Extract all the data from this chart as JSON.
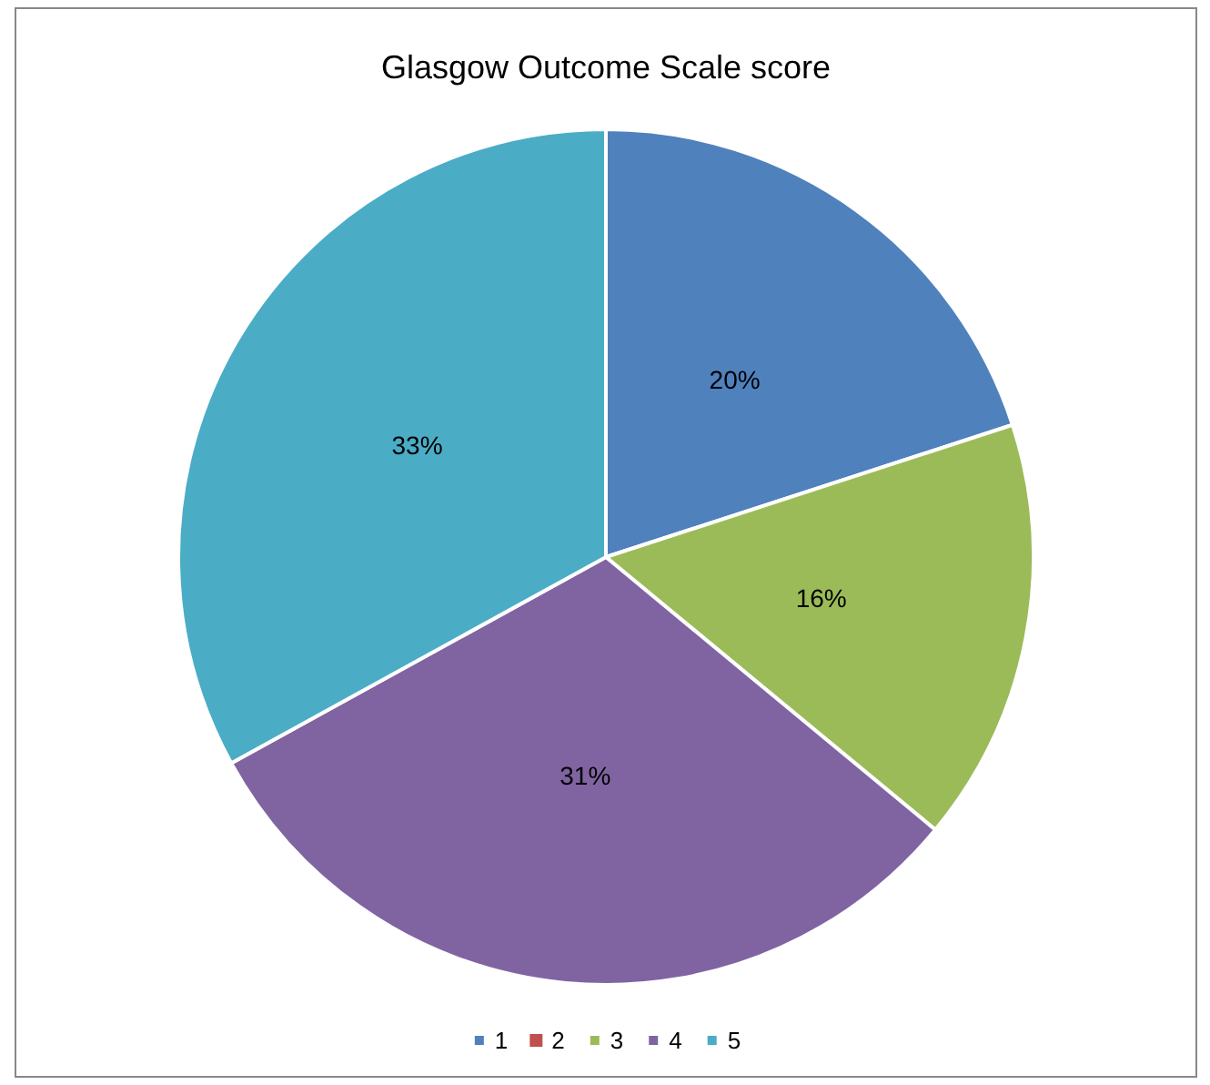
{
  "chart_data": {
    "type": "pie",
    "title": "Glasgow Outcome Scale score",
    "categories": [
      "1",
      "2",
      "3",
      "4",
      "5"
    ],
    "values": [
      20,
      0,
      16,
      31,
      33
    ],
    "colors": [
      "#4f81bd",
      "#c0504d",
      "#9bbb59",
      "#8064a2",
      "#4bacc6"
    ],
    "value_labels": [
      "20%",
      null,
      "16%",
      "31%",
      "33%"
    ],
    "legend": "bottom"
  }
}
